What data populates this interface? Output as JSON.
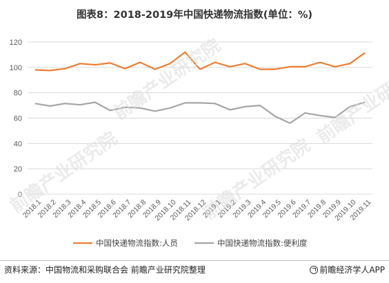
{
  "title": "图表8：2018-2019年中国快递物流指数(单位：%)",
  "source": "资料来源：中国物流和采购联合会 前瞻产业研究院整理",
  "brand": "前瞻经济学人APP",
  "watermarks": [
    "前瞻产业研究院",
    "前瞻产业研究院",
    "前瞻产业研究院",
    "前瞻产业研究院"
  ],
  "colors": {
    "orange": "#ed7d31",
    "gray": "#a5a5a5",
    "grid": "#d9d9d9",
    "axis_text": "#595959"
  },
  "chart_data": {
    "type": "line",
    "title": "图表8：2018-2019年中国快递物流指数(单位：%)",
    "categories": [
      "2018.1",
      "2018.2",
      "2018.3",
      "2018.4",
      "2018.5",
      "2018.6",
      "2018.7",
      "2018.8",
      "2018.9",
      "2018.10",
      "2018.11",
      "2018.12",
      "2019.1",
      "2019.2",
      "2019.3",
      "2019.4",
      "2019.5",
      "2019.6",
      "2019.7",
      "2019.8",
      "2019.9",
      "2019.10",
      "2019.11"
    ],
    "series": [
      {
        "name": "中国快递物流指数:人员",
        "color": "#ed7d31",
        "values": [
          98,
          97.5,
          99,
          103,
          102,
          103.5,
          99,
          104,
          98.5,
          103,
          112,
          98.5,
          104,
          100.5,
          103,
          98.5,
          98.5,
          100.5,
          100.5,
          104,
          100.5,
          103,
          111.5
        ]
      },
      {
        "name": "中国快递物流指数:便利度",
        "color": "#a5a5a5",
        "values": [
          71.5,
          69.5,
          71.5,
          70.5,
          72.5,
          66,
          68.5,
          68,
          65.5,
          68,
          72,
          72,
          71.5,
          66.5,
          69,
          70,
          61.5,
          56,
          64,
          62,
          60.5,
          69,
          72.5
        ]
      }
    ],
    "ylim": [
      0,
      120
    ],
    "yticks": [
      0,
      20,
      40,
      60,
      80,
      100,
      120
    ],
    "grid": true,
    "legend": "bottom"
  }
}
